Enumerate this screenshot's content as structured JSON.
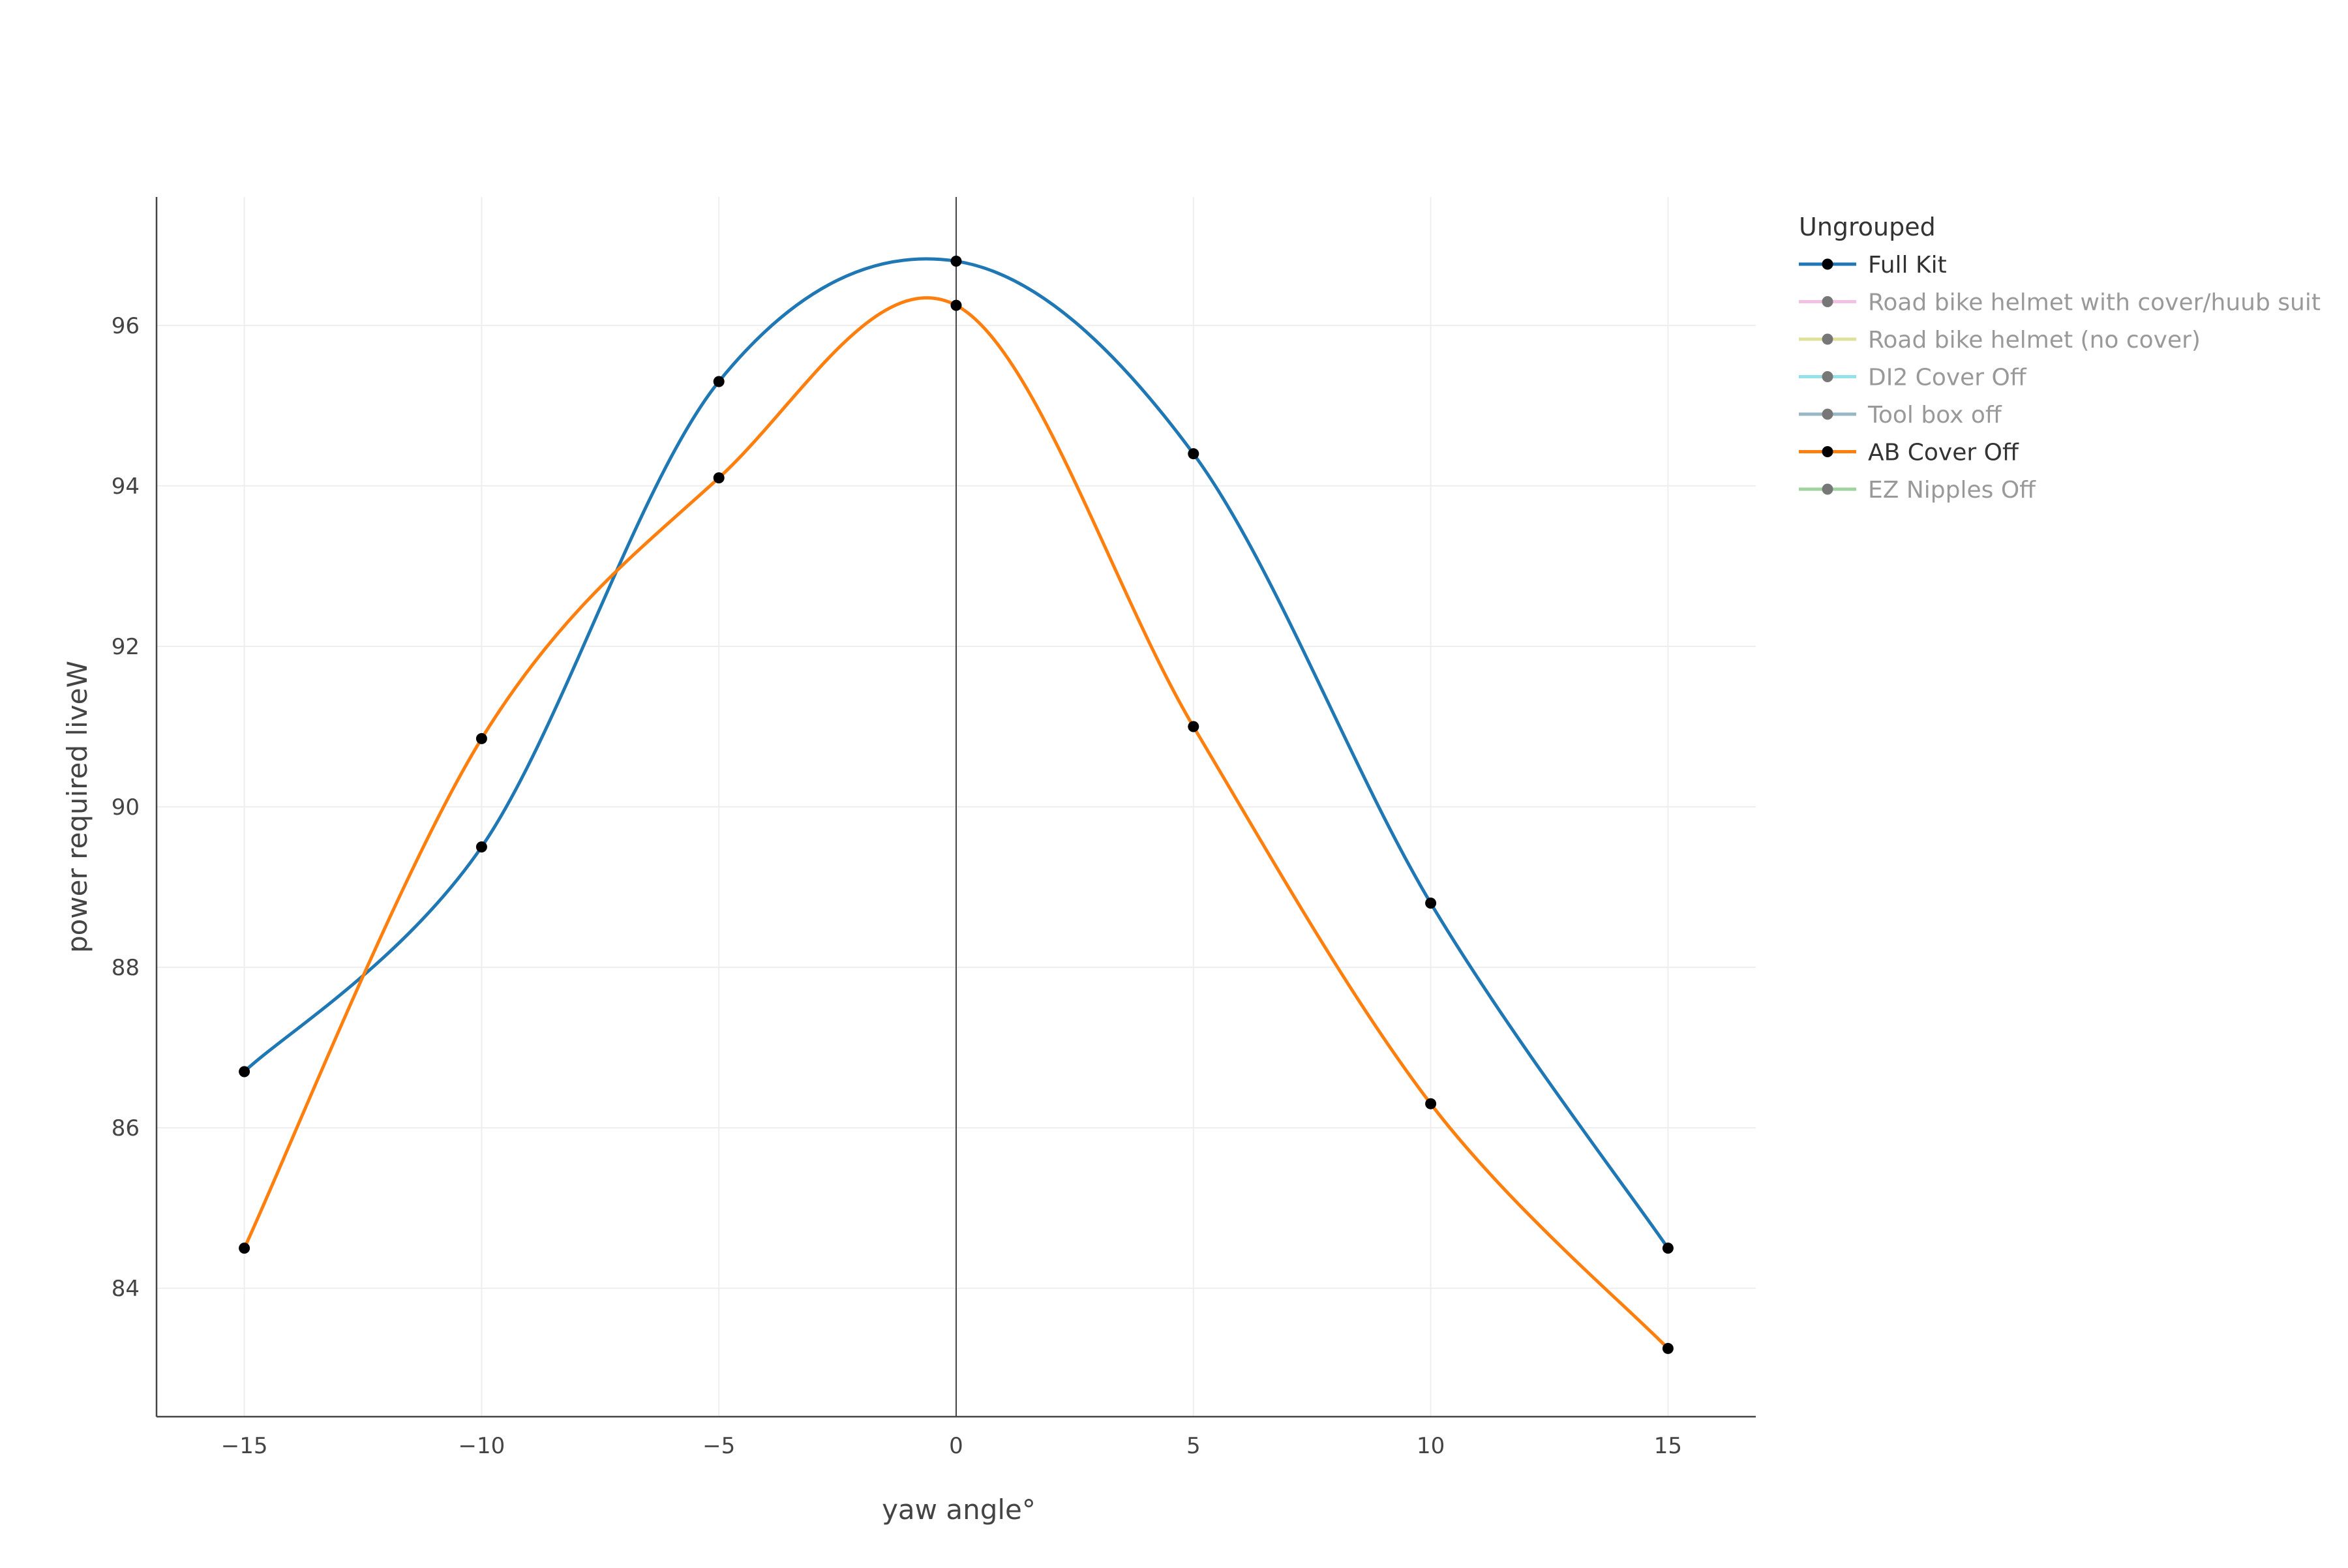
{
  "chart_data": {
    "type": "line",
    "title": "",
    "xlabel": "yaw angle°",
    "ylabel": "power required liveW",
    "xlim": [
      -16.85,
      16.85
    ],
    "ylim": [
      82.4,
      97.6
    ],
    "x_ticks": [
      -15,
      -10,
      -5,
      0,
      5,
      10,
      15
    ],
    "x_tick_labels": [
      "−15",
      "−10",
      "−5",
      "0",
      "5",
      "10",
      "15"
    ],
    "y_ticks": [
      84,
      86,
      88,
      90,
      92,
      94,
      96
    ],
    "y_tick_labels": [
      "84",
      "86",
      "88",
      "90",
      "92",
      "94",
      "96"
    ],
    "grid": true,
    "zero_line_x": true,
    "line_shape": "spline",
    "legend": {
      "title": "Ungrouped",
      "placement": "top-right, outside plot"
    },
    "series": [
      {
        "name": "Full Kit",
        "visible": true,
        "color": "#1f77b4",
        "x": [
          -15,
          -10,
          -5,
          0,
          5,
          10,
          15
        ],
        "y": [
          86.7,
          89.5,
          95.3,
          96.8,
          94.4,
          88.8,
          84.5
        ]
      },
      {
        "name": "Road bike helmet with cover/huub suit",
        "visible": false,
        "color": "#e377c2",
        "x": [],
        "y": []
      },
      {
        "name": "Road bike helmet (no cover)",
        "visible": false,
        "color": "#bcbd22",
        "x": [],
        "y": []
      },
      {
        "name": "DI2 Cover Off",
        "visible": false,
        "color": "#17becf",
        "x": [],
        "y": []
      },
      {
        "name": "Tool box off",
        "visible": false,
        "color": "#1f5f7f",
        "x": [],
        "y": []
      },
      {
        "name": "AB Cover Off",
        "visible": true,
        "color": "#ff7f0e",
        "x": [
          -15,
          -10,
          -5,
          0,
          5,
          10,
          15
        ],
        "y": [
          84.5,
          90.85,
          94.1,
          96.25,
          91.0,
          86.3,
          83.25
        ]
      },
      {
        "name": "EZ Nipples Off",
        "visible": false,
        "color": "#2ca02c",
        "x": [],
        "y": []
      }
    ]
  },
  "colors": {
    "marker": "#000000",
    "grid": "#eeeeee",
    "axis": "#444444",
    "hidden_legend_text": "#999999",
    "visible_legend_text": "#333333"
  }
}
